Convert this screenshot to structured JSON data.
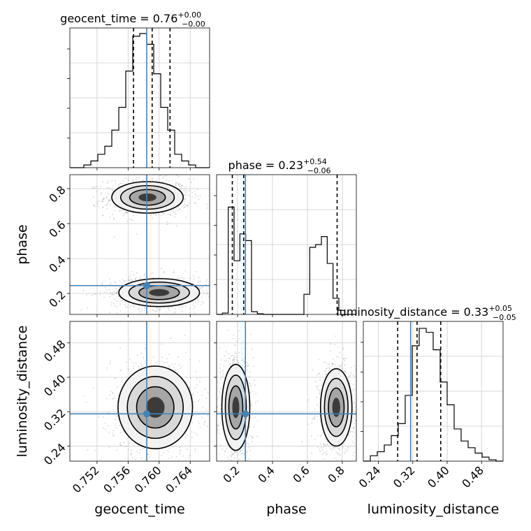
{
  "chart_data": {
    "type": "corner",
    "parameters": [
      "geocent_time",
      "phase",
      "luminosity_distance"
    ],
    "truth": {
      "geocent_time": 0.7584,
      "phase": 0.245,
      "luminosity_distance": 0.315
    },
    "truth_color": "#4682b4",
    "panel_ranges": {
      "geocent_time": [
        0.7485,
        0.7665
      ],
      "phase": [
        0.08,
        0.88
      ],
      "luminosity_distance": [
        0.205,
        0.53
      ]
    },
    "ticks": {
      "geocent_time": [
        0.752,
        0.756,
        0.76,
        0.764
      ],
      "phase": [
        0.2,
        0.4,
        0.6,
        0.8
      ],
      "luminosity_distance": [
        0.24,
        0.32,
        0.4,
        0.48
      ]
    },
    "tick_labels": {
      "geocent_time": [
        "0.752",
        "0.756",
        "0.760",
        "0.764"
      ],
      "phase": [
        "0.2",
        "0.4",
        "0.6",
        "0.8"
      ],
      "luminosity_distance": [
        "0.24",
        "0.32",
        "0.40",
        "0.48"
      ]
    },
    "axis_labels": {
      "geocent_time": "geocent_time",
      "phase": "phase",
      "luminosity_distance": "luminosity_distance"
    },
    "titles": {
      "geocent_time": {
        "text": "geocent_time = 0.76",
        "plus": "+0.00",
        "minus": "−0.00"
      },
      "phase": {
        "text": "phase = 0.23",
        "plus": "+0.54",
        "minus": "−0.06"
      },
      "luminosity_distance": {
        "text": "luminosity_distance = 0.33",
        "plus": "+0.05",
        "minus": "−0.05"
      }
    },
    "quantiles": {
      "geocent_time": [
        0.7567,
        0.7591,
        0.7614
      ],
      "phase": [
        0.17,
        0.235,
        0.77
      ],
      "luminosity_distance": [
        0.285,
        0.33,
        0.385
      ]
    },
    "histograms": {
      "geocent_time": [
        0,
        0,
        0.02,
        0.05,
        0.1,
        0.16,
        0.28,
        0.45,
        0.72,
        0.98,
        1.0,
        0.92,
        0.7,
        0.45,
        0.28,
        0.1,
        0.05,
        0.02,
        0,
        0
      ],
      "phase": [
        0,
        0.01,
        0.8,
        0.4,
        0.6,
        0.55,
        0.02,
        0.005,
        0,
        0,
        0,
        0,
        0,
        0,
        0,
        0.15,
        0.5,
        0.52,
        0.58,
        0.38,
        0.12,
        0.03,
        0,
        0
      ],
      "luminosity_distance": [
        0,
        0.04,
        0.07,
        0.12,
        0.19,
        0.28,
        0.49,
        0.86,
        0.99,
        0.96,
        0.83,
        0.59,
        0.42,
        0.24,
        0.15,
        0.1,
        0.06,
        0.03,
        0.01,
        0
      ]
    },
    "clusters": {
      "geocent_time_vs_phase": [
        {
          "cx": 0.7585,
          "cy": 0.75,
          "sx": 0.0023,
          "sy": 0.045
        },
        {
          "cx": 0.76,
          "cy": 0.205,
          "sx": 0.0026,
          "sy": 0.04
        }
      ],
      "geocent_time_vs_luminosity_distance": [
        {
          "cx": 0.7595,
          "cy": 0.33,
          "sx": 0.0024,
          "sy": 0.048
        }
      ],
      "phase_vs_luminosity_distance": [
        {
          "cx": 0.19,
          "cy": 0.33,
          "sx": 0.04,
          "sy": 0.05
        },
        {
          "cx": 0.765,
          "cy": 0.33,
          "sx": 0.045,
          "sy": 0.045
        }
      ]
    }
  }
}
